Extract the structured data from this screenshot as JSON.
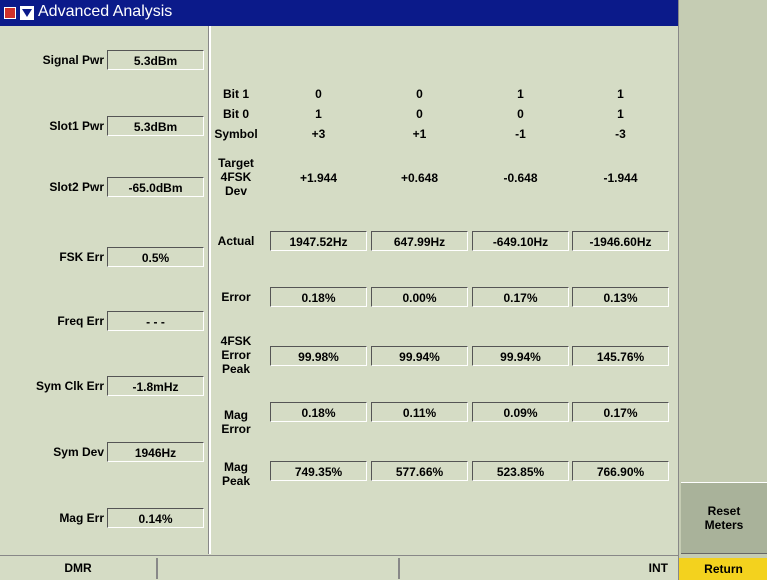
{
  "title": "Advanced Analysis",
  "left_panel": [
    {
      "label": "Signal Pwr",
      "value": "5.3dBm"
    },
    {
      "label": "Slot1 Pwr",
      "value": "5.3dBm"
    },
    {
      "label": "Slot2 Pwr",
      "value": "-65.0dBm"
    },
    {
      "label": "FSK Err",
      "value": "0.5%"
    },
    {
      "label": "Freq Err",
      "value": "- - -"
    },
    {
      "label": "Sym Clk Err",
      "value": "-1.8mHz"
    },
    {
      "label": "Sym Dev",
      "value": "1946Hz"
    },
    {
      "label": "Mag Err",
      "value": "0.14%"
    }
  ],
  "table": {
    "rows": [
      {
        "label": [
          "Bit 1"
        ],
        "boxed": false,
        "values": [
          "0",
          "0",
          "1",
          "1"
        ]
      },
      {
        "label": [
          "Bit 0"
        ],
        "boxed": false,
        "values": [
          "1",
          "0",
          "0",
          "1"
        ]
      },
      {
        "label": [
          "Symbol"
        ],
        "boxed": false,
        "values": [
          "+3",
          "+1",
          "-1",
          "-3"
        ]
      },
      {
        "label": [
          "Target",
          "4FSK",
          "Dev"
        ],
        "boxed": false,
        "values": [
          "+1.944",
          "+0.648",
          "-0.648",
          "-1.944"
        ]
      },
      {
        "label": [
          "Actual"
        ],
        "boxed": true,
        "values": [
          "1947.52Hz",
          "647.99Hz",
          "-649.10Hz",
          "-1946.60Hz"
        ]
      },
      {
        "label": [
          "Error"
        ],
        "boxed": true,
        "values": [
          "0.18%",
          "0.00%",
          "0.17%",
          "0.13%"
        ]
      },
      {
        "label": [
          "4FSK",
          "Error",
          "Peak"
        ],
        "boxed": true,
        "values": [
          "99.98%",
          "99.94%",
          "99.94%",
          "145.76%"
        ]
      },
      {
        "label": [
          "Mag",
          "Error"
        ],
        "boxed": true,
        "values": [
          "0.18%",
          "0.11%",
          "0.09%",
          "0.17%"
        ]
      },
      {
        "label": [
          "Mag",
          "Peak"
        ],
        "boxed": true,
        "values": [
          "749.35%",
          "577.66%",
          "523.85%",
          "766.90%"
        ]
      }
    ]
  },
  "softkey": [
    "Reset",
    "Meters"
  ],
  "status": {
    "mode": "DMR",
    "ref": "INT",
    "return": "Return"
  }
}
